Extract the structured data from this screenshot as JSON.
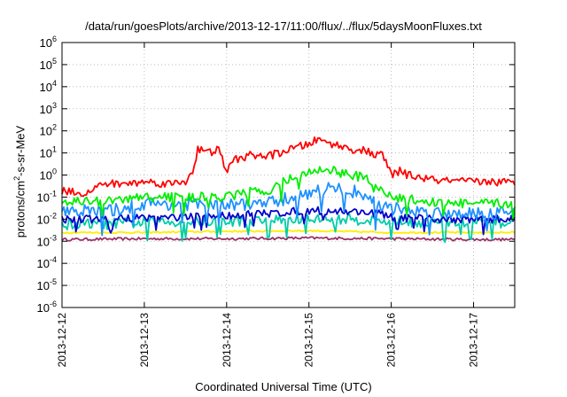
{
  "chart_data": {
    "type": "line",
    "title": "/data/run/goesPlots/archive/2013-12-17/11:00/flux/../flux/5daysMoonFluxes.txt",
    "xlabel": "Coordinated Universal Time (UTC)",
    "ylabel": {
      "prefix": "protons/cm",
      "sup": "2",
      "suffix": "-s-sr-MeV"
    },
    "yscale": "log",
    "ylim": [
      1e-06,
      1000000.0
    ],
    "xlim": [
      "2013-12-12T00:00",
      "2013-12-17T12:00"
    ],
    "grid": true,
    "legend": "none",
    "x_ticks": [
      "2013-12-12",
      "2013-12-13",
      "2013-12-14",
      "2013-12-15",
      "2013-12-16",
      "2013-12-17"
    ],
    "y_ticks": [
      {
        "base": "10",
        "exp": "-6"
      },
      {
        "base": "10",
        "exp": "-5"
      },
      {
        "base": "10",
        "exp": "-4"
      },
      {
        "base": "10",
        "exp": "-3"
      },
      {
        "base": "10",
        "exp": "-2"
      },
      {
        "base": "10",
        "exp": "-1"
      },
      {
        "base": "10",
        "exp": "0"
      },
      {
        "base": "10",
        "exp": "1"
      },
      {
        "base": "10",
        "exp": "2"
      },
      {
        "base": "10",
        "exp": "3"
      },
      {
        "base": "10",
        "exp": "4"
      },
      {
        "base": "10",
        "exp": "5"
      },
      {
        "base": "10",
        "exp": "6"
      }
    ],
    "series": [
      {
        "color": "#ff0000",
        "x": [
          0,
          0.3,
          0.5,
          0.8,
          1,
          1.3,
          1.5,
          1.6,
          1.65,
          1.8,
          1.9,
          2.0,
          2.1,
          2.3,
          2.5,
          2.7,
          2.9,
          3.0,
          3.1,
          3.3,
          3.5,
          3.7,
          3.8,
          3.9,
          4.0,
          4.1,
          4.2,
          4.5,
          4.8,
          5.0,
          5.2,
          5.5
        ],
        "y": [
          0.2,
          0.15,
          0.4,
          0.4,
          0.5,
          0.4,
          0.5,
          2,
          15,
          10,
          15,
          1.5,
          5,
          8,
          7,
          12,
          20,
          25,
          40,
          25,
          15,
          12,
          8,
          8,
          1,
          1.5,
          1,
          0.6,
          0.5,
          0.5,
          0.5,
          0.45
        ]
      },
      {
        "color": "#00ee00",
        "x": [
          0,
          0.5,
          1,
          1.5,
          2,
          2.2,
          2.5,
          2.8,
          3,
          3.2,
          3.5,
          3.7,
          3.8,
          4,
          4.5,
          5,
          5.5
        ],
        "y": [
          0.07,
          0.06,
          0.1,
          0.1,
          0.1,
          0.15,
          0.2,
          0.8,
          1.2,
          2,
          1,
          0.7,
          0.25,
          0.1,
          0.06,
          0.05,
          0.05
        ]
      },
      {
        "color": "#1e90ff",
        "x": [
          0,
          0.5,
          1,
          1.5,
          2,
          2.2,
          2.5,
          2.8,
          3,
          3.2,
          3.5,
          3.7,
          3.8,
          4,
          4.5,
          5,
          5.5
        ],
        "y": [
          0.03,
          0.02,
          0.05,
          0.05,
          0.04,
          0.05,
          0.05,
          0.1,
          0.15,
          0.25,
          0.2,
          0.12,
          0.05,
          0.03,
          0.02,
          0.02,
          0.02
        ]
      },
      {
        "color": "#0000cc",
        "x": [
          0,
          0.5,
          1,
          1.5,
          2,
          2.5,
          3,
          3.5,
          3.8,
          4,
          4.5,
          5,
          5.5
        ],
        "y": [
          0.01,
          0.01,
          0.012,
          0.012,
          0.015,
          0.018,
          0.025,
          0.022,
          0.02,
          0.012,
          0.01,
          0.01,
          0.01
        ]
      },
      {
        "color": "#00ccaa",
        "x": [
          0,
          0.5,
          1,
          1.5,
          2,
          2.5,
          3,
          3.5,
          4,
          4.5,
          5,
          5.5
        ],
        "y": [
          0.006,
          0.006,
          0.007,
          0.008,
          0.008,
          0.009,
          0.01,
          0.01,
          0.008,
          0.007,
          0.007,
          0.007
        ]
      },
      {
        "color": "#ffee00",
        "x": [
          0,
          1,
          2,
          3,
          4,
          5,
          5.5
        ],
        "y": [
          0.0025,
          0.0025,
          0.0028,
          0.003,
          0.0025,
          0.0025,
          0.0025
        ]
      },
      {
        "color": "#993366",
        "x": [
          0,
          1,
          2,
          3,
          4,
          5,
          5.5
        ],
        "y": [
          0.0012,
          0.0013,
          0.0013,
          0.0014,
          0.0013,
          0.0012,
          0.0012
        ]
      }
    ]
  }
}
